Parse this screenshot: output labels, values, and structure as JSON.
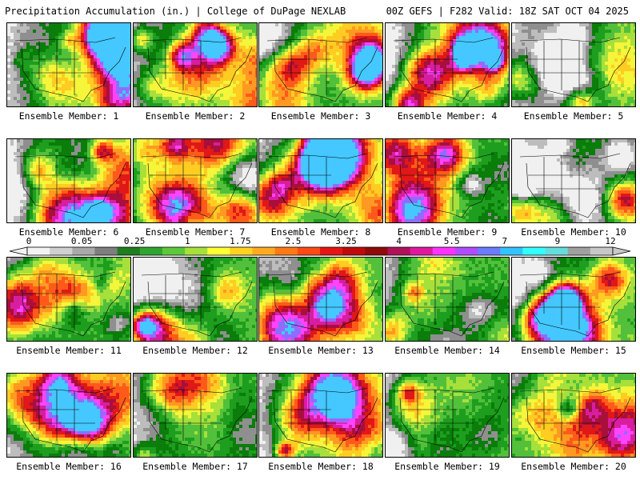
{
  "header": {
    "title": "Precipitation Accumulation (in.) | College of DuPage NEXLAB",
    "run_info": "00Z GEFS | F282 Valid: 18Z SAT OCT 04 2025"
  },
  "members": [
    {
      "label": "Ensemble Member: 1"
    },
    {
      "label": "Ensemble Member: 2"
    },
    {
      "label": "Ensemble Member: 3"
    },
    {
      "label": "Ensemble Member: 4"
    },
    {
      "label": "Ensemble Member: 5"
    },
    {
      "label": "Ensemble Member: 6"
    },
    {
      "label": "Ensemble Member: 7"
    },
    {
      "label": "Ensemble Member: 8"
    },
    {
      "label": "Ensemble Member: 9"
    },
    {
      "label": "Ensemble Member: 10"
    },
    {
      "label": "Ensemble Member: 11"
    },
    {
      "label": "Ensemble Member: 12"
    },
    {
      "label": "Ensemble Member: 13"
    },
    {
      "label": "Ensemble Member: 14"
    },
    {
      "label": "Ensemble Member: 15"
    },
    {
      "label": "Ensemble Member: 16"
    },
    {
      "label": "Ensemble Member: 17"
    },
    {
      "label": "Ensemble Member: 18"
    },
    {
      "label": "Ensemble Member: 19"
    },
    {
      "label": "Ensemble Member: 20"
    }
  ],
  "colorbar": {
    "tick_labels": [
      "0",
      "0.05",
      "0.25",
      "1",
      "1.75",
      "2.5",
      "3.25",
      "4",
      "5.5",
      "7",
      "9",
      "12"
    ],
    "colors": [
      "#f2f2f2",
      "#d0d0d0",
      "#a9a9a9",
      "#7e7e7e",
      "#1e7d1e",
      "#2fa52f",
      "#5cc83a",
      "#a6e03a",
      "#ffff33",
      "#ffd21f",
      "#ffaa1f",
      "#ff7a14",
      "#ff4a14",
      "#e81414",
      "#c00a0a",
      "#900a0a",
      "#b0105a",
      "#e0189e",
      "#ff33ff",
      "#b04dff",
      "#6a7cff",
      "#33c3ff",
      "#33ffff",
      "#66dddd",
      "#a0a0a0",
      "#c8c8c8"
    ]
  }
}
